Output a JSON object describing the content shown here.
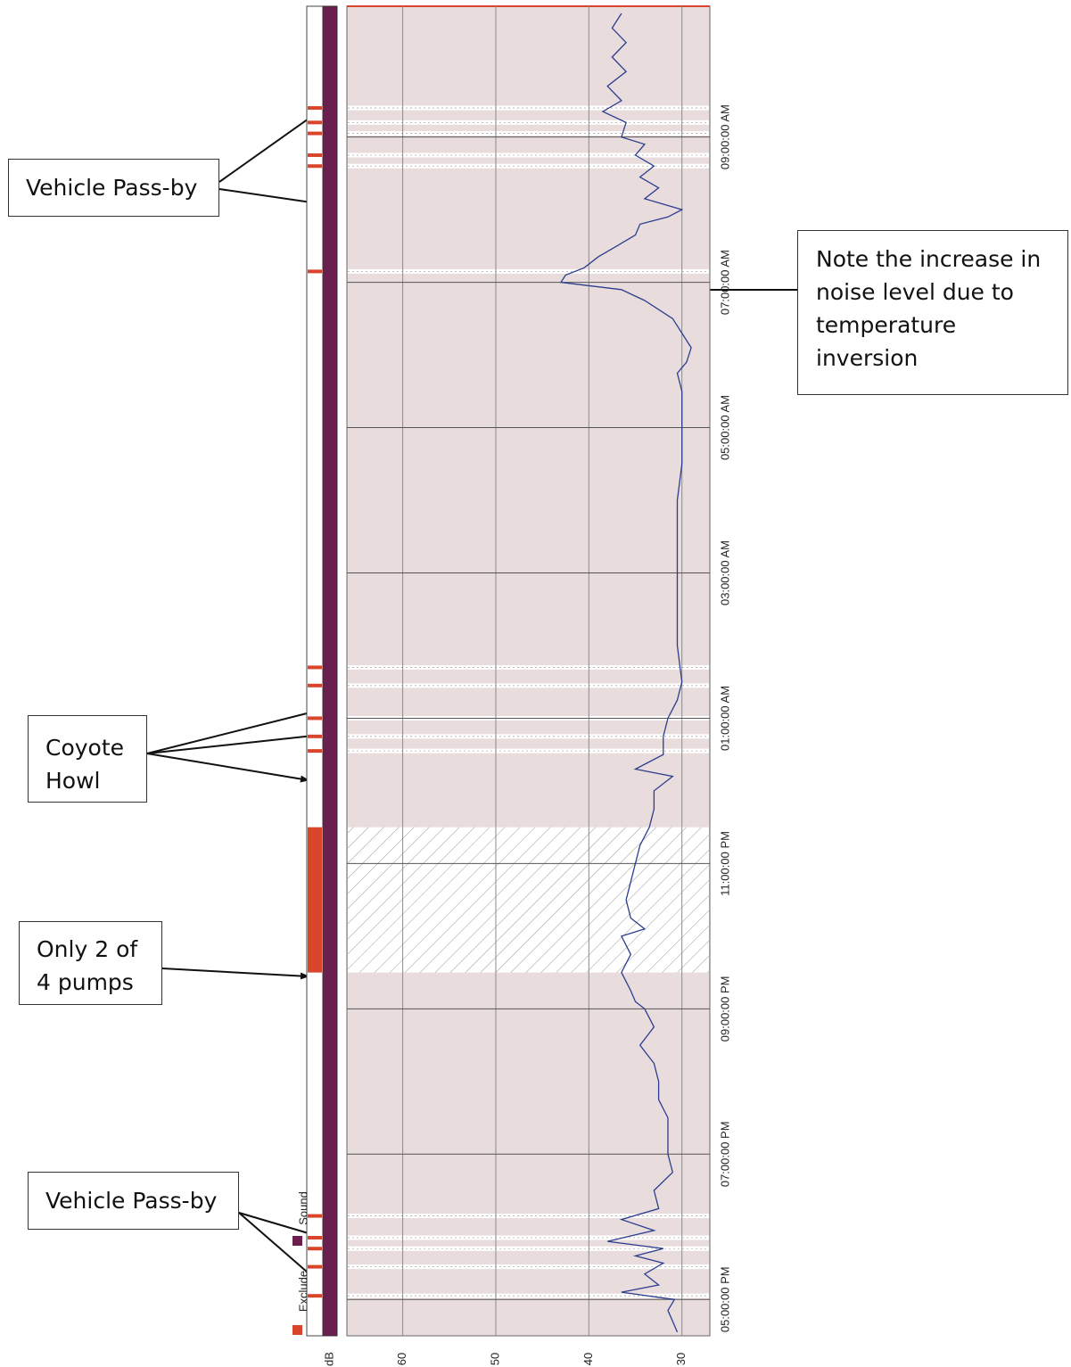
{
  "chart_data": {
    "type": "line",
    "orientation": "rotated-90-time-vertical",
    "ylabel": "dB",
    "y_ticks": [
      "60",
      "50",
      "40",
      "30"
    ],
    "y_tick_values": [
      60,
      50,
      40,
      30
    ],
    "ylim": [
      27,
      66
    ],
    "time_ticks": [
      "05:00:00 PM",
      "07:00:00 PM",
      "09:00:00 PM",
      "11:00:00 PM",
      "01:00:00 AM",
      "03:00:00 AM",
      "05:00:00 AM",
      "07:00:00 AM",
      "09:00:00 AM"
    ],
    "time_tick_hours": [
      0,
      2,
      4,
      6,
      8,
      10,
      12,
      14,
      16
    ],
    "time_range_hours": [
      -0.5,
      17.8
    ],
    "legend": {
      "items": [
        "Exclude",
        "Sound"
      ],
      "colors": [
        "#d9452b",
        "#6b1f4e"
      ],
      "placement": "bottom-left"
    },
    "series": [
      {
        "color": "#2b3d8f",
        "points": [
          [
            -0.45,
            30.5
          ],
          [
            -0.3,
            31.0
          ],
          [
            -0.15,
            31.5
          ],
          [
            0.0,
            30.8
          ],
          [
            0.1,
            36.5
          ],
          [
            0.2,
            32.5
          ],
          [
            0.35,
            34.0
          ],
          [
            0.5,
            32.0
          ],
          [
            0.6,
            35.0
          ],
          [
            0.7,
            32.0
          ],
          [
            0.8,
            38.0
          ],
          [
            0.95,
            33.0
          ],
          [
            1.1,
            36.5
          ],
          [
            1.25,
            32.5
          ],
          [
            1.5,
            33.0
          ],
          [
            1.75,
            31.0
          ],
          [
            2.0,
            31.5
          ],
          [
            2.25,
            31.5
          ],
          [
            2.5,
            31.5
          ],
          [
            2.75,
            32.5
          ],
          [
            3.0,
            32.5
          ],
          [
            3.25,
            33.0
          ],
          [
            3.5,
            34.5
          ],
          [
            3.75,
            33.0
          ],
          [
            4.0,
            34.0
          ],
          [
            4.1,
            35.0
          ],
          [
            4.25,
            35.5
          ],
          [
            4.5,
            36.5
          ],
          [
            4.75,
            35.5
          ],
          [
            5.0,
            36.5
          ],
          [
            5.1,
            34.0
          ],
          [
            5.25,
            35.5
          ],
          [
            5.5,
            36.0
          ],
          [
            5.75,
            35.5
          ],
          [
            6.0,
            35.0
          ],
          [
            6.25,
            34.5
          ],
          [
            6.5,
            33.5
          ],
          [
            6.75,
            33.0
          ],
          [
            7.0,
            33.0
          ],
          [
            7.2,
            31.0
          ],
          [
            7.3,
            35.0
          ],
          [
            7.5,
            32.0
          ],
          [
            7.75,
            32.0
          ],
          [
            8.0,
            31.5
          ],
          [
            8.25,
            30.5
          ],
          [
            8.5,
            30.0
          ],
          [
            9.0,
            30.5
          ],
          [
            9.5,
            30.5
          ],
          [
            10.0,
            30.5
          ],
          [
            10.5,
            30.5
          ],
          [
            11.0,
            30.5
          ],
          [
            11.5,
            30.0
          ],
          [
            12.0,
            30.0
          ],
          [
            12.5,
            30.0
          ],
          [
            12.75,
            30.5
          ],
          [
            12.9,
            29.5
          ],
          [
            13.1,
            29.0
          ],
          [
            13.3,
            30.0
          ],
          [
            13.5,
            31.0
          ],
          [
            13.75,
            34.0
          ],
          [
            13.9,
            36.5
          ],
          [
            14.0,
            43.0
          ],
          [
            14.1,
            42.5
          ],
          [
            14.2,
            40.5
          ],
          [
            14.35,
            39.0
          ],
          [
            14.5,
            37.0
          ],
          [
            14.65,
            35.0
          ],
          [
            14.8,
            34.5
          ],
          [
            14.9,
            31.5
          ],
          [
            15.0,
            30.0
          ],
          [
            15.15,
            34.0
          ],
          [
            15.3,
            32.5
          ],
          [
            15.45,
            34.5
          ],
          [
            15.6,
            33.0
          ],
          [
            15.75,
            35.0
          ],
          [
            15.9,
            34.0
          ],
          [
            16.0,
            36.5
          ],
          [
            16.2,
            36.0
          ],
          [
            16.35,
            38.5
          ],
          [
            16.5,
            36.5
          ],
          [
            16.7,
            38.0
          ],
          [
            16.9,
            36.0
          ],
          [
            17.1,
            37.5
          ],
          [
            17.3,
            36.0
          ],
          [
            17.5,
            37.5
          ],
          [
            17.7,
            36.5
          ]
        ]
      }
    ]
  },
  "bands": {
    "hatched": [
      [
        4.5,
        6.5
      ]
    ],
    "white_bars": [
      0.05,
      0.45,
      0.7,
      0.85,
      1.15,
      7.55,
      7.75,
      8.0,
      8.45,
      8.7,
      14.15,
      15.6,
      15.75,
      16.05,
      16.2,
      16.4
    ]
  },
  "annotations": {
    "vehicle_top": "Vehicle Pass-by",
    "note": [
      "Note the increase in",
      "noise level due to",
      "temperature",
      "inversion"
    ],
    "coyote": [
      "Coyote",
      "Howl"
    ],
    "pumps": [
      "Only 2 of",
      "4 pumps"
    ],
    "vehicle_bottom": "Vehicle Pass-by"
  }
}
